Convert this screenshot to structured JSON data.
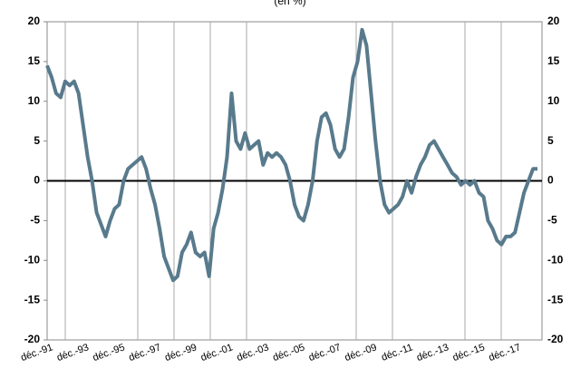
{
  "chart_data": {
    "type": "line",
    "title": "(en %)",
    "categories": [
      "déc.-91",
      null,
      null,
      null,
      null,
      null,
      null,
      null,
      "déc.-93",
      null,
      null,
      null,
      null,
      null,
      null,
      null,
      "déc.-95",
      null,
      null,
      null,
      null,
      null,
      null,
      null,
      "déc.-97",
      null,
      null,
      null,
      null,
      null,
      null,
      null,
      "déc.-99",
      null,
      null,
      null,
      null,
      null,
      null,
      null,
      "déc.-01",
      null,
      null,
      null,
      null,
      null,
      null,
      null,
      "déc.-03",
      null,
      null,
      null,
      null,
      null,
      null,
      null,
      "déc.-05",
      null,
      null,
      null,
      null,
      null,
      null,
      null,
      "déc.-07",
      null,
      null,
      null,
      null,
      null,
      null,
      null,
      "déc.-09",
      null,
      null,
      null,
      null,
      null,
      null,
      null,
      "déc.-11",
      null,
      null,
      null,
      null,
      null,
      null,
      null,
      "déc.-13",
      null,
      null,
      null,
      null,
      null,
      null,
      null,
      "déc.-15",
      null,
      null,
      null,
      null,
      null,
      null,
      null,
      "déc.-17",
      null,
      null,
      null,
      null,
      null
    ],
    "series": [
      {
        "color": "#587a8c",
        "values": [
          14.5,
          13,
          11,
          10.5,
          12.5,
          12,
          12.5,
          11,
          7,
          3,
          0,
          -4,
          -5.5,
          -7,
          -5,
          -3.5,
          -3,
          0,
          1.5,
          2,
          2.5,
          3,
          1.5,
          -1,
          -3,
          -6,
          -9.5,
          -11,
          -12.5,
          -12,
          -9,
          -8,
          -6.5,
          -9,
          -9.5,
          -9,
          -12,
          -6,
          -4,
          -1,
          3,
          11,
          5,
          4,
          6,
          4,
          4.5,
          5,
          2,
          3.5,
          3,
          3.5,
          3,
          2,
          0,
          -3,
          -4.5,
          -5,
          -3,
          0,
          5,
          8,
          8.5,
          7,
          4,
          3,
          4,
          8,
          13,
          15,
          19,
          17,
          11,
          5,
          0,
          -3,
          -4,
          -3.5,
          -3,
          -2,
          0,
          -1.5,
          0.5,
          2,
          3,
          4.5,
          5,
          4,
          3,
          2,
          1,
          0.5,
          -0.5,
          0,
          -0.5,
          0,
          -1.5,
          -2,
          -5,
          -6,
          -7.5,
          -8,
          -7,
          -7,
          -6.5,
          -4,
          -1.5,
          0,
          1.5,
          1.5
        ]
      }
    ],
    "ylim": [
      -20,
      20
    ],
    "yticks": [
      -20,
      -15,
      -10,
      -5,
      0,
      5,
      10,
      15,
      20
    ]
  }
}
